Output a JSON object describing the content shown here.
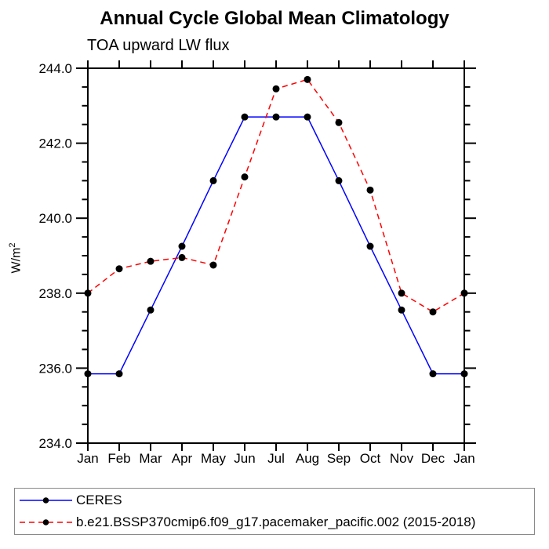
{
  "chart_data": {
    "type": "line",
    "title": "Annual Cycle Global Mean Climatology",
    "subtitle": "TOA upward LW flux",
    "ylabel": {
      "base": "W/m",
      "sup": "2"
    },
    "x_tick_labels": [
      "Jan",
      "Feb",
      "Mar",
      "Apr",
      "May",
      "Jun",
      "Jul",
      "Aug",
      "Sep",
      "Oct",
      "Nov",
      "Dec",
      "Jan"
    ],
    "y_tick_labels": [
      "244.0",
      "242.0",
      "240.0",
      "238.0",
      "236.0",
      "234.0"
    ],
    "ylim": [
      234.0,
      244.0
    ],
    "y_major_step": 2.0,
    "y_minor_step": 0.5,
    "grid": false,
    "legend_position": "bottom-left",
    "axis_color": "#000000",
    "marker_color": "#000000",
    "series": [
      {
        "name": "CERES",
        "color": "#0000ff",
        "line_style": "solid",
        "marker": "filled-circle",
        "values": [
          235.85,
          235.85,
          237.55,
          239.25,
          241.0,
          242.7,
          242.7,
          242.7,
          241.0,
          239.25,
          237.55,
          235.85,
          235.85
        ]
      },
      {
        "name": "b.e21.BSSP370cmip6.f09_g17.pacemaker_pacific.002 (2015-2018)",
        "color": "#ff0000",
        "line_style": "dashed",
        "marker": "filled-circle",
        "values": [
          238.0,
          238.65,
          238.85,
          238.95,
          238.75,
          241.1,
          243.45,
          243.7,
          242.55,
          240.75,
          238.0,
          237.5,
          238.0
        ]
      }
    ]
  }
}
